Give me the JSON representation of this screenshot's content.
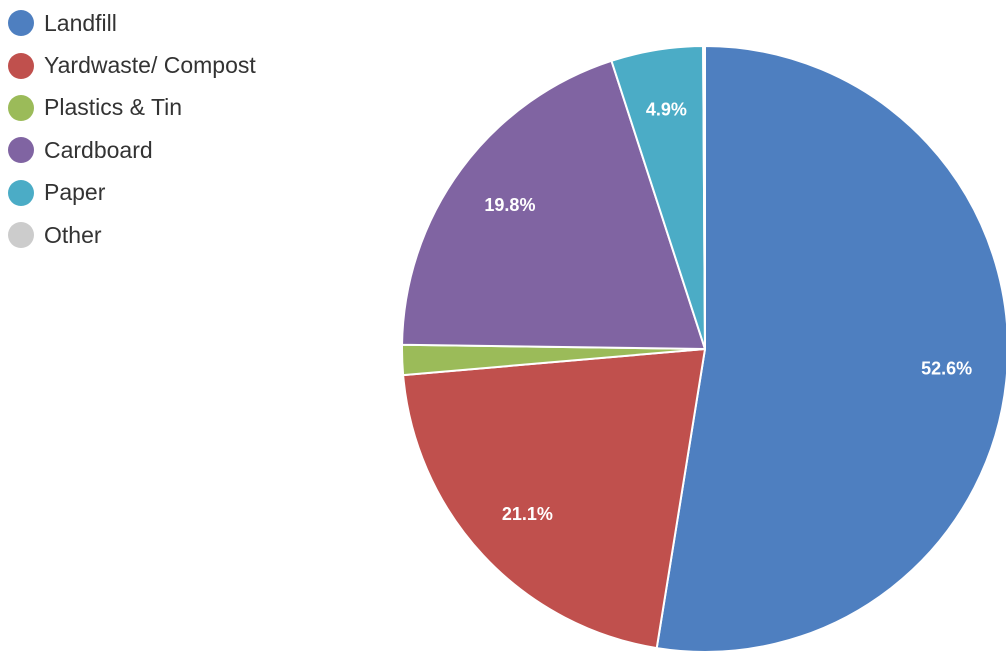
{
  "chart_data": {
    "type": "pie",
    "categories": [
      "Landfill",
      "Yardwaste/ Compost",
      "Plastics & Tin",
      "Cardboard",
      "Paper",
      "Other"
    ],
    "values": [
      52.6,
      21.1,
      1.6,
      19.8,
      4.9,
      0.1
    ],
    "data_labels": [
      "52.6%",
      "21.1%",
      "",
      "19.8%",
      "4.9%",
      ""
    ],
    "colors": [
      "#4E7FC0",
      "#C0504D",
      "#9BBB59",
      "#8064A2",
      "#4BACC6",
      "#CCCCCC"
    ],
    "start_angle_deg": 0,
    "direction": "clockwise",
    "legend_position": "top-left"
  }
}
